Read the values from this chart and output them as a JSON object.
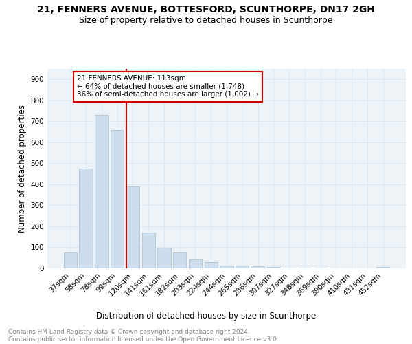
{
  "title": "21, FENNERS AVENUE, BOTTESFORD, SCUNTHORPE, DN17 2GH",
  "subtitle": "Size of property relative to detached houses in Scunthorpe",
  "xlabel": "Distribution of detached houses by size in Scunthorpe",
  "ylabel": "Number of detached properties",
  "bar_labels": [
    "37sqm",
    "58sqm",
    "78sqm",
    "99sqm",
    "120sqm",
    "141sqm",
    "161sqm",
    "182sqm",
    "203sqm",
    "224sqm",
    "244sqm",
    "265sqm",
    "286sqm",
    "307sqm",
    "327sqm",
    "348sqm",
    "369sqm",
    "390sqm",
    "410sqm",
    "431sqm",
    "452sqm"
  ],
  "bar_values": [
    75,
    475,
    730,
    660,
    390,
    170,
    98,
    75,
    44,
    30,
    14,
    12,
    9,
    5,
    4,
    3,
    2,
    0,
    0,
    0,
    8
  ],
  "bar_color": "#ccdded",
  "bar_edge_color": "#aabfcf",
  "vline_color": "#cc0000",
  "annotation_box_text": "21 FENNERS AVENUE: 113sqm\n← 64% of detached houses are smaller (1,748)\n36% of semi-detached houses are larger (1,002) →",
  "box_edge_color": "#cc0000",
  "box_face_color": "white",
  "grid_color": "#dde8f0",
  "background_color": "#eef3f8",
  "footer_text": "Contains HM Land Registry data © Crown copyright and database right 2024.\nContains public sector information licensed under the Open Government Licence v3.0.",
  "ylim": [
    0,
    950
  ],
  "yticks": [
    0,
    100,
    200,
    300,
    400,
    500,
    600,
    700,
    800,
    900
  ],
  "title_fontsize": 10,
  "subtitle_fontsize": 9,
  "tick_fontsize": 7.5,
  "ylabel_fontsize": 8.5,
  "xlabel_fontsize": 8.5,
  "footer_fontsize": 6.5
}
